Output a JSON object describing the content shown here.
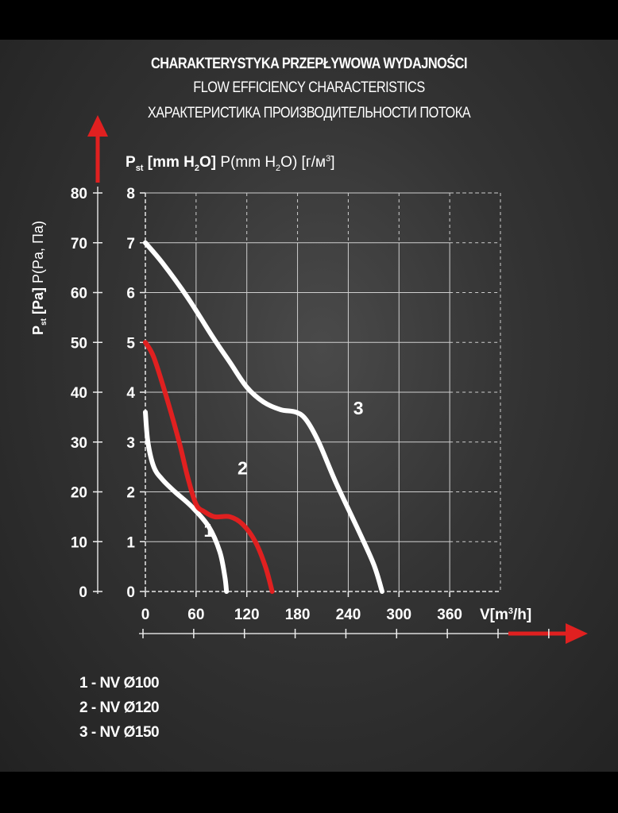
{
  "titles": {
    "pl": "CHARAKTERYSTYKA PRZEPŁYWOWA WYDAJNOŚCI",
    "en": "FLOW EFFICIENCY CHARACTERISTICS",
    "ru": "ХАРАКТЕРИСТИКА ПРОИЗВОДИТЕЛЬНОСТИ ПОТОКА"
  },
  "axis_labels": {
    "y_inner": "P st [mm H2O] P(mm H2O) [г/м3]",
    "y_outer": "P st [Pa] P(Pa, Па)",
    "x": "V[m3/h]"
  },
  "colors": {
    "accent": "#e02020",
    "curve_white": "#ffffff",
    "grid": "#cfcfcf"
  },
  "chart_data": {
    "type": "line",
    "title": "CHARAKTERYSTYKA PRZEPŁYWOWA WYDAJNOŚCI",
    "xlabel": "V[m3/h]",
    "ylabel": "P st [mm H2O]",
    "ylabel_secondary": "P st [Pa]",
    "xlim": [
      0,
      420
    ],
    "ylim": [
      0,
      8
    ],
    "ylim_secondary": [
      0,
      80
    ],
    "x_ticks": [
      "0",
      "60",
      "120",
      "180",
      "240",
      "300",
      "360"
    ],
    "y_ticks": [
      "0",
      "1",
      "2",
      "3",
      "4",
      "5",
      "6",
      "7",
      "8"
    ],
    "y_ticks_secondary": [
      "0",
      "10",
      "20",
      "30",
      "40",
      "50",
      "60",
      "70",
      "80"
    ],
    "grid": true,
    "series": [
      {
        "name": "1",
        "color": "#ffffff",
        "points": [
          [
            0,
            3.6
          ],
          [
            3,
            3.0
          ],
          [
            10,
            2.5
          ],
          [
            20,
            2.25
          ],
          [
            35,
            2.0
          ],
          [
            55,
            1.7
          ],
          [
            75,
            1.3
          ],
          [
            88,
            0.8
          ],
          [
            94,
            0.3
          ],
          [
            96,
            0
          ]
        ]
      },
      {
        "name": "2",
        "color": "#e02020",
        "points": [
          [
            0,
            5.0
          ],
          [
            10,
            4.7
          ],
          [
            25,
            3.9
          ],
          [
            40,
            3.0
          ],
          [
            50,
            2.3
          ],
          [
            60,
            1.75
          ],
          [
            70,
            1.6
          ],
          [
            82,
            1.5
          ],
          [
            100,
            1.5
          ],
          [
            115,
            1.35
          ],
          [
            130,
            1.0
          ],
          [
            142,
            0.5
          ],
          [
            150,
            0
          ]
        ]
      },
      {
        "name": "3",
        "color": "#ffffff",
        "points": [
          [
            0,
            7.0
          ],
          [
            20,
            6.6
          ],
          [
            50,
            5.9
          ],
          [
            80,
            5.1
          ],
          [
            100,
            4.6
          ],
          [
            120,
            4.1
          ],
          [
            140,
            3.8
          ],
          [
            160,
            3.65
          ],
          [
            178,
            3.6
          ],
          [
            190,
            3.45
          ],
          [
            205,
            3.0
          ],
          [
            225,
            2.2
          ],
          [
            250,
            1.3
          ],
          [
            270,
            0.55
          ],
          [
            280,
            0
          ]
        ]
      }
    ]
  },
  "legend": [
    "1 - NV Ø100",
    "2 - NV Ø120",
    "3 - NV Ø150"
  ]
}
